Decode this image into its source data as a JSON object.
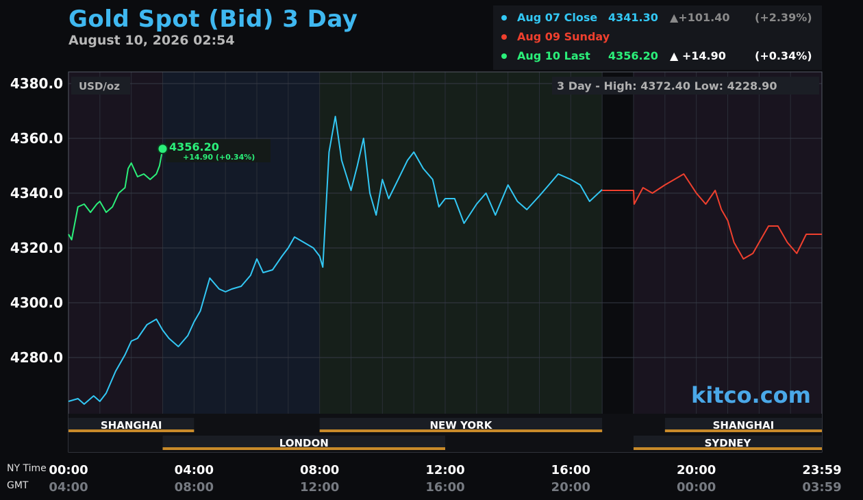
{
  "header": {
    "title": "Gold Spot (Bid) 3 Day",
    "subtitle": "August 10, 2026 02:54"
  },
  "legend": [
    {
      "label": "Aug 07 Close",
      "value": "4341.30",
      "change": "▲+101.40",
      "percent": "(+2.39%)",
      "color": "#33c8f5"
    },
    {
      "label": "Aug 09 Sunday",
      "value": "",
      "change": "",
      "percent": "",
      "color": "#f0402e"
    },
    {
      "label": "Aug 10 Last",
      "value": "4356.20",
      "change": "▲  +14.90",
      "percent": "(+0.34%)",
      "color": "#2bf07a"
    }
  ],
  "colors": {
    "aug07": "#33c8f5",
    "aug09": "#f0402e",
    "aug10": "#2bf07a",
    "title": "#3fb8f0",
    "session_bar": "#c88a2a",
    "watermark": "#4aa8e8"
  },
  "chart": {
    "unit": "USD/oz",
    "high_low": "3 Day - High: 4372.40  Low: 4228.90",
    "watermark": "kitco.com",
    "last_label": "4356.20",
    "last_change": "+14.90 (+0.34%)"
  },
  "axes": {
    "ny_label": "NY Time",
    "gmt_label": "GMT",
    "ny_times": [
      "00:00",
      "04:00",
      "08:00",
      "12:00",
      "16:00",
      "20:00",
      "23:59"
    ],
    "gmt_times": [
      "04:00",
      "08:00",
      "12:00",
      "16:00",
      "20:00",
      "00:00",
      "03:59"
    ]
  },
  "sessions": {
    "top": [
      {
        "name": "SHANGHAI",
        "start": 0,
        "end": 4
      },
      {
        "name": "NEW YORK",
        "start": 8,
        "end": 17
      },
      {
        "name": "SHANGHAI",
        "start": 19,
        "end": 24
      }
    ],
    "bottom": [
      {
        "name": "LONDON",
        "start": 3,
        "end": 12
      },
      {
        "name": "SYDNEY",
        "start": 18,
        "end": 24
      }
    ]
  },
  "chart_data": {
    "type": "line",
    "title": "Gold Spot (Bid) 3 Day",
    "ylabel": "USD/oz",
    "ylim": [
      4256,
      4380
    ],
    "xlim": [
      0,
      24
    ],
    "yticks": [
      4280.0,
      4300.0,
      4320.0,
      4340.0,
      4360.0,
      4380.0
    ],
    "high": 4372.4,
    "low": 4228.9,
    "series": [
      {
        "name": "Aug 07 Close",
        "x": [
          0,
          0.3,
          0.5,
          0.8,
          1.0,
          1.2,
          1.5,
          1.8,
          2.0,
          2.2,
          2.5,
          2.8,
          3.0,
          3.2,
          3.5,
          3.8,
          4.0,
          4.2,
          4.5,
          4.8,
          5.0,
          5.2,
          5.5,
          5.8,
          6.0,
          6.2,
          6.5,
          6.8,
          7.0,
          7.2,
          7.5,
          7.8,
          8.0,
          8.1,
          8.3,
          8.5,
          8.7,
          9.0,
          9.2,
          9.4,
          9.6,
          9.8,
          10.0,
          10.2,
          10.5,
          10.8,
          11.0,
          11.3,
          11.6,
          11.8,
          12.0,
          12.3,
          12.6,
          13.0,
          13.3,
          13.6,
          14.0,
          14.3,
          14.6,
          15.0,
          15.3,
          15.6,
          16.0,
          16.3,
          16.6,
          17.0
        ],
        "values": [
          4264,
          4265,
          4263,
          4266,
          4264,
          4267,
          4275,
          4281,
          4286,
          4287,
          4292,
          4294,
          4290,
          4287,
          4284,
          4288,
          4293,
          4297,
          4309,
          4305,
          4304,
          4305,
          4306,
          4310,
          4316,
          4311,
          4312,
          4317,
          4320,
          4324,
          4322,
          4320,
          4317,
          4313,
          4355,
          4368,
          4352,
          4341,
          4350,
          4360,
          4340,
          4332,
          4345,
          4338,
          4345,
          4352,
          4355,
          4349,
          4345,
          4335,
          4338,
          4338,
          4329,
          4336,
          4340,
          4332,
          4343,
          4337,
          4334,
          4339,
          4343,
          4347,
          4345,
          4343,
          4337,
          4341.3
        ],
        "color": "#33c8f5"
      },
      {
        "name": "Aug 09 Sunday",
        "x": [
          17.0,
          18.0,
          18.02,
          18.3,
          18.6,
          19.0,
          19.3,
          19.6,
          20.0,
          20.3,
          20.6,
          20.8,
          21.0,
          21.2,
          21.5,
          21.8,
          22.0,
          22.3,
          22.6,
          22.9,
          23.2,
          23.5,
          24.0
        ],
        "values": [
          4341,
          4341,
          4336,
          4342,
          4340,
          4343,
          4345,
          4347,
          4340,
          4336,
          4341,
          4334,
          4330,
          4322,
          4316,
          4318,
          4322,
          4328,
          4328,
          4322,
          4318,
          4325,
          4325
        ],
        "color": "#f0402e"
      },
      {
        "name": "Aug 10 Last",
        "x": [
          0,
          0.1,
          0.3,
          0.5,
          0.7,
          0.9,
          1.0,
          1.2,
          1.4,
          1.6,
          1.8,
          1.9,
          2.0,
          2.2,
          2.4,
          2.6,
          2.8,
          2.9,
          3.0
        ],
        "values": [
          4325,
          4323,
          4335,
          4336,
          4333,
          4336,
          4337,
          4333,
          4335,
          4340,
          4342,
          4349,
          4351,
          4346,
          4347,
          4345,
          4347,
          4350,
          4356.2
        ],
        "color": "#2bf07a"
      }
    ]
  }
}
